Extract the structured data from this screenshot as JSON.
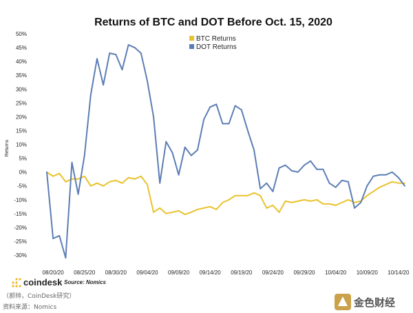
{
  "chart_data": {
    "type": "line",
    "title": "Returns of BTC and DOT Before Oct. 15, 2020",
    "ylabel": "Returns",
    "xlabel": "",
    "ylim": [
      -30,
      50
    ],
    "y_ticks": [
      "50%",
      "45%",
      "40%",
      "35%",
      "30%",
      "25%",
      "20%",
      "15%",
      "10%",
      "5%",
      "0%",
      "-5%",
      "-10%",
      "-15%",
      "-20%",
      "-25%",
      "-30%"
    ],
    "x_tick_labels": [
      "08/20/20",
      "08/25/20",
      "08/30/20",
      "09/04/20",
      "09/09/20",
      "09/14/20",
      "09/19/20",
      "09/24/20",
      "09/29/20",
      "10/04/20",
      "10/09/20",
      "10/14/20"
    ],
    "x_start": "08/19/20",
    "x_end": "10/15/20",
    "legend_position": "top-center",
    "grid": false,
    "series": [
      {
        "name": "BTC Returns",
        "color": "#e9c12c",
        "points": [
          [
            "08/19/20",
            0
          ],
          [
            "08/20/20",
            -1.5
          ],
          [
            "08/21/20",
            -0.5
          ],
          [
            "08/22/20",
            -3.5
          ],
          [
            "08/23/20",
            -2.5
          ],
          [
            "08/24/20",
            -2.5
          ],
          [
            "08/25/20",
            -1.5
          ],
          [
            "08/26/20",
            -5
          ],
          [
            "08/27/20",
            -4
          ],
          [
            "08/28/20",
            -5
          ],
          [
            "08/29/20",
            -3.5
          ],
          [
            "08/30/20",
            -3
          ],
          [
            "08/31/20",
            -4
          ],
          [
            "09/01/20",
            -2
          ],
          [
            "09/02/20",
            -2.5
          ],
          [
            "09/03/20",
            -1.5
          ],
          [
            "09/04/20",
            -4.5
          ],
          [
            "09/05/20",
            -14.5
          ],
          [
            "09/06/20",
            -13
          ],
          [
            "09/07/20",
            -15
          ],
          [
            "09/08/20",
            -14.5
          ],
          [
            "09/09/20",
            -14
          ],
          [
            "09/10/20",
            -15.3
          ],
          [
            "09/11/20",
            -14.5
          ],
          [
            "09/12/20",
            -13.5
          ],
          [
            "09/13/20",
            -13
          ],
          [
            "09/14/20",
            -12.5
          ],
          [
            "09/15/20",
            -13.5
          ],
          [
            "09/16/20",
            -11
          ],
          [
            "09/17/20",
            -10
          ],
          [
            "09/18/20",
            -8.5
          ],
          [
            "09/19/20",
            -8.5
          ],
          [
            "09/20/20",
            -8.5
          ],
          [
            "09/21/20",
            -7.5
          ],
          [
            "09/22/20",
            -8.5
          ],
          [
            "09/23/20",
            -13
          ],
          [
            "09/24/20",
            -12
          ],
          [
            "09/25/20",
            -14.5
          ],
          [
            "09/26/20",
            -10.5
          ],
          [
            "09/27/20",
            -11
          ],
          [
            "09/28/20",
            -10.5
          ],
          [
            "09/29/20",
            -10
          ],
          [
            "09/30/20",
            -10.5
          ],
          [
            "10/01/20",
            -10
          ],
          [
            "10/02/20",
            -11.5
          ],
          [
            "10/03/20",
            -11.5
          ],
          [
            "10/04/20",
            -12
          ],
          [
            "10/05/20",
            -11
          ],
          [
            "10/06/20",
            -10
          ],
          [
            "10/07/20",
            -11
          ],
          [
            "10/08/20",
            -10.5
          ],
          [
            "10/09/20",
            -8.5
          ],
          [
            "10/10/20",
            -7
          ],
          [
            "10/11/20",
            -5.5
          ],
          [
            "10/12/20",
            -4.5
          ],
          [
            "10/13/20",
            -3.5
          ],
          [
            "10/14/20",
            -4
          ],
          [
            "10/15/20",
            -4
          ]
        ]
      },
      {
        "name": "DOT Returns",
        "color": "#5b7db4",
        "points": [
          [
            "08/19/20",
            0
          ],
          [
            "08/20/20",
            -24
          ],
          [
            "08/21/20",
            -23
          ],
          [
            "08/22/20",
            -31
          ],
          [
            "08/23/20",
            3.5
          ],
          [
            "08/24/20",
            -8
          ],
          [
            "08/25/20",
            6
          ],
          [
            "08/26/20",
            28
          ],
          [
            "08/27/20",
            41
          ],
          [
            "08/28/20",
            31.5
          ],
          [
            "08/29/20",
            43
          ],
          [
            "08/30/20",
            42.5
          ],
          [
            "08/31/20",
            37
          ],
          [
            "09/01/20",
            46
          ],
          [
            "09/02/20",
            45
          ],
          [
            "09/03/20",
            43
          ],
          [
            "09/04/20",
            33
          ],
          [
            "09/05/20",
            20
          ],
          [
            "09/06/20",
            -4
          ],
          [
            "09/07/20",
            11
          ],
          [
            "09/08/20",
            7
          ],
          [
            "09/09/20",
            -1
          ],
          [
            "09/10/20",
            9
          ],
          [
            "09/11/20",
            6
          ],
          [
            "09/12/20",
            8
          ],
          [
            "09/13/20",
            19
          ],
          [
            "09/14/20",
            23.5
          ],
          [
            "09/15/20",
            24.5
          ],
          [
            "09/16/20",
            17.5
          ],
          [
            "09/17/20",
            17.5
          ],
          [
            "09/18/20",
            24
          ],
          [
            "09/19/20",
            22.5
          ],
          [
            "09/20/20",
            15
          ],
          [
            "09/21/20",
            8
          ],
          [
            "09/22/20",
            -6
          ],
          [
            "09/23/20",
            -4
          ],
          [
            "09/24/20",
            -7
          ],
          [
            "09/25/20",
            1.5
          ],
          [
            "09/26/20",
            2.5
          ],
          [
            "09/27/20",
            0.5
          ],
          [
            "09/28/20",
            0
          ],
          [
            "09/29/20",
            2.5
          ],
          [
            "09/30/20",
            4
          ],
          [
            "10/01/20",
            1
          ],
          [
            "10/02/20",
            1
          ],
          [
            "10/03/20",
            -4
          ],
          [
            "10/04/20",
            -5.5
          ],
          [
            "10/05/20",
            -3
          ],
          [
            "10/06/20",
            -3.5
          ],
          [
            "10/07/20",
            -13
          ],
          [
            "10/08/20",
            -11
          ],
          [
            "10/09/20",
            -5
          ],
          [
            "10/10/20",
            -1.5
          ],
          [
            "10/11/20",
            -1
          ],
          [
            "10/12/20",
            -1
          ],
          [
            "10/13/20",
            0
          ],
          [
            "10/14/20",
            -2
          ],
          [
            "10/15/20",
            -5
          ]
        ]
      }
    ]
  },
  "footer": {
    "brand": "coindesk",
    "source": "Source: Nomics",
    "credit_1": "（郝帅，CoinDesk研究）",
    "credit_2": "资料来源：Nomics",
    "watermark": "金色财经"
  }
}
